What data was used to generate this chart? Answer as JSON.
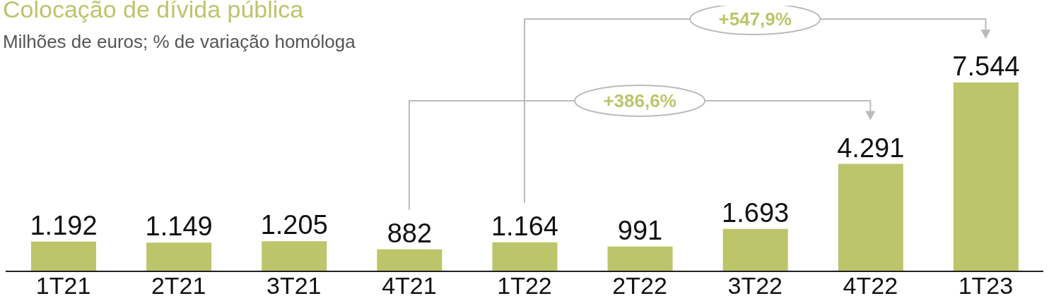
{
  "chart_data": {
    "type": "bar",
    "title": "Colocação de dívida pública",
    "subtitle": "Milhões de euros; % de variação homóloga",
    "categories": [
      "1T21",
      "2T21",
      "3T21",
      "4T21",
      "1T22",
      "2T22",
      "3T22",
      "4T22",
      "1T23"
    ],
    "values": [
      1192,
      1149,
      1205,
      882,
      1164,
      991,
      1693,
      4291,
      7544
    ],
    "value_labels": [
      "1.192",
      "1.149",
      "1.205",
      "882",
      "1.164",
      "991",
      "1.693",
      "4.291",
      "7.544"
    ],
    "colors": [
      "#bcc56a",
      "#bcc56a",
      "#bcc56a",
      "#bcc56a",
      "#bcc56a",
      "#bcc56a",
      "#bcc56a",
      "#bcc56a",
      "#bcc56a"
    ],
    "annotations": [
      "+386,6%",
      "+547,9%"
    ],
    "grid": false,
    "legend": false
  }
}
